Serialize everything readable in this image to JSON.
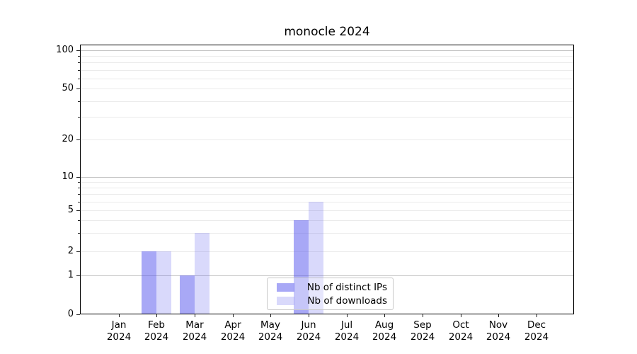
{
  "title": "monocle 2024",
  "chart_data": {
    "type": "bar",
    "title": "monocle 2024",
    "categories": [
      "Jan",
      "Feb",
      "Mar",
      "Apr",
      "May",
      "Jun",
      "Jul",
      "Aug",
      "Sep",
      "Oct",
      "Nov",
      "Dec"
    ],
    "category_year": "2024",
    "series": [
      {
        "name": "Nb of distinct IPs",
        "color": "rgba(82,82,238,0.5)",
        "solid_color": "#aaaaf6",
        "values": [
          0,
          2,
          1,
          0,
          0,
          4,
          0,
          0,
          0,
          0,
          0,
          0
        ]
      },
      {
        "name": "Nb of downloads",
        "color": "rgba(82,82,238,0.22)",
        "solid_color": "#d9d9fa",
        "values": [
          0,
          2,
          3,
          0,
          0,
          6,
          0,
          0,
          0,
          0,
          0,
          0
        ]
      }
    ],
    "y_ticks": [
      0,
      1,
      2,
      5,
      10,
      20,
      50,
      100
    ],
    "y_tick_labels": [
      "0",
      "1",
      "2",
      "5",
      "10",
      "20",
      "50",
      "100"
    ],
    "y_scale": "symlog",
    "ylim": [
      0,
      100
    ],
    "xlabel": "",
    "ylabel": "",
    "grid": "both",
    "legend_position": "lower-center",
    "grid_major_color": "#c4c4c4",
    "grid_minor_color": "#ebebeb"
  }
}
